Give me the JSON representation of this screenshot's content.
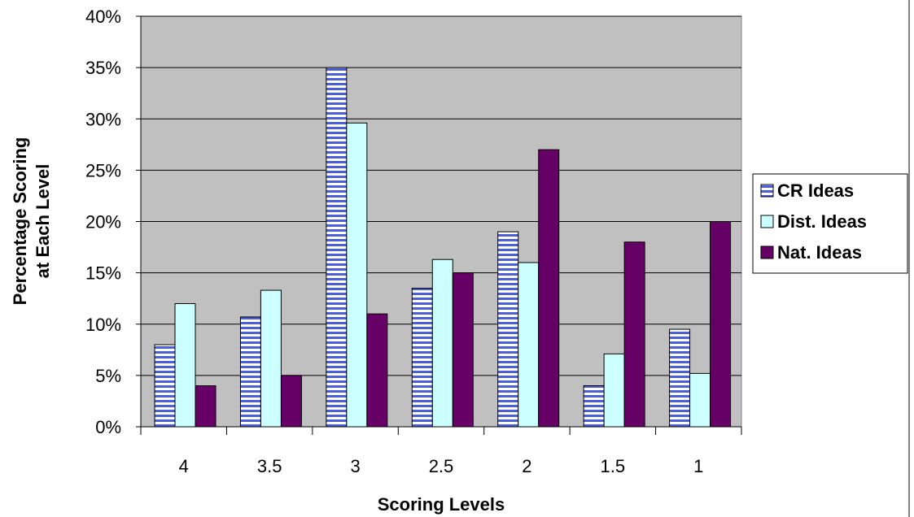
{
  "chart_data": {
    "type": "bar",
    "title": "",
    "xlabel": "Scoring Levels",
    "ylabel_lines": [
      "Percentage Scoring",
      "at Each Level"
    ],
    "ylim": [
      0,
      40
    ],
    "yticks": [
      0,
      5,
      10,
      15,
      20,
      25,
      30,
      35,
      40
    ],
    "ytick_suffix": "%",
    "grid": true,
    "legend_position": "right",
    "categories": [
      "4",
      "3.5",
      "3",
      "2.5",
      "2",
      "1.5",
      "1"
    ],
    "series": [
      {
        "name": "CR Ideas",
        "values": [
          8,
          10.7,
          35,
          13.5,
          19,
          4,
          9.5
        ],
        "color": "#4a5fd8",
        "pattern": "horizontal-stripes"
      },
      {
        "name": "Dist. Ideas",
        "values": [
          12,
          13.3,
          29.6,
          16.3,
          16,
          7.1,
          5.2
        ],
        "color": "#ccffff",
        "pattern": "solid"
      },
      {
        "name": "Nat. Ideas",
        "values": [
          4,
          5,
          11,
          15,
          27,
          18,
          20
        ],
        "color": "#660066",
        "pattern": "solid"
      }
    ],
    "colors": {
      "plot_background": "#c0c0c0",
      "gridline": "#000000",
      "stripe_light": "#ffffff"
    }
  }
}
